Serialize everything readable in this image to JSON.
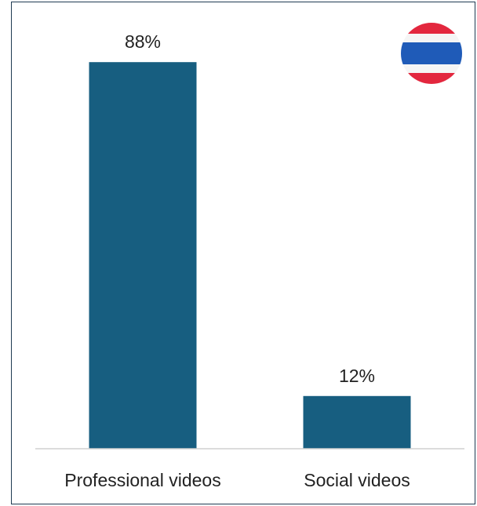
{
  "chart_data": {
    "type": "bar",
    "categories": [
      "Professional videos",
      "Social videos"
    ],
    "values": [
      88,
      12
    ],
    "value_labels": [
      "88%",
      "12%"
    ],
    "ylim": [
      0,
      100
    ],
    "grid": false,
    "bar_color": "#175e80",
    "title": "",
    "xlabel": "",
    "ylabel": ""
  },
  "flag": {
    "icon": "thailand-flag-icon",
    "colors": {
      "red": "#e3273e",
      "white": "#f5f5f5",
      "blue": "#1f5bb8"
    }
  }
}
